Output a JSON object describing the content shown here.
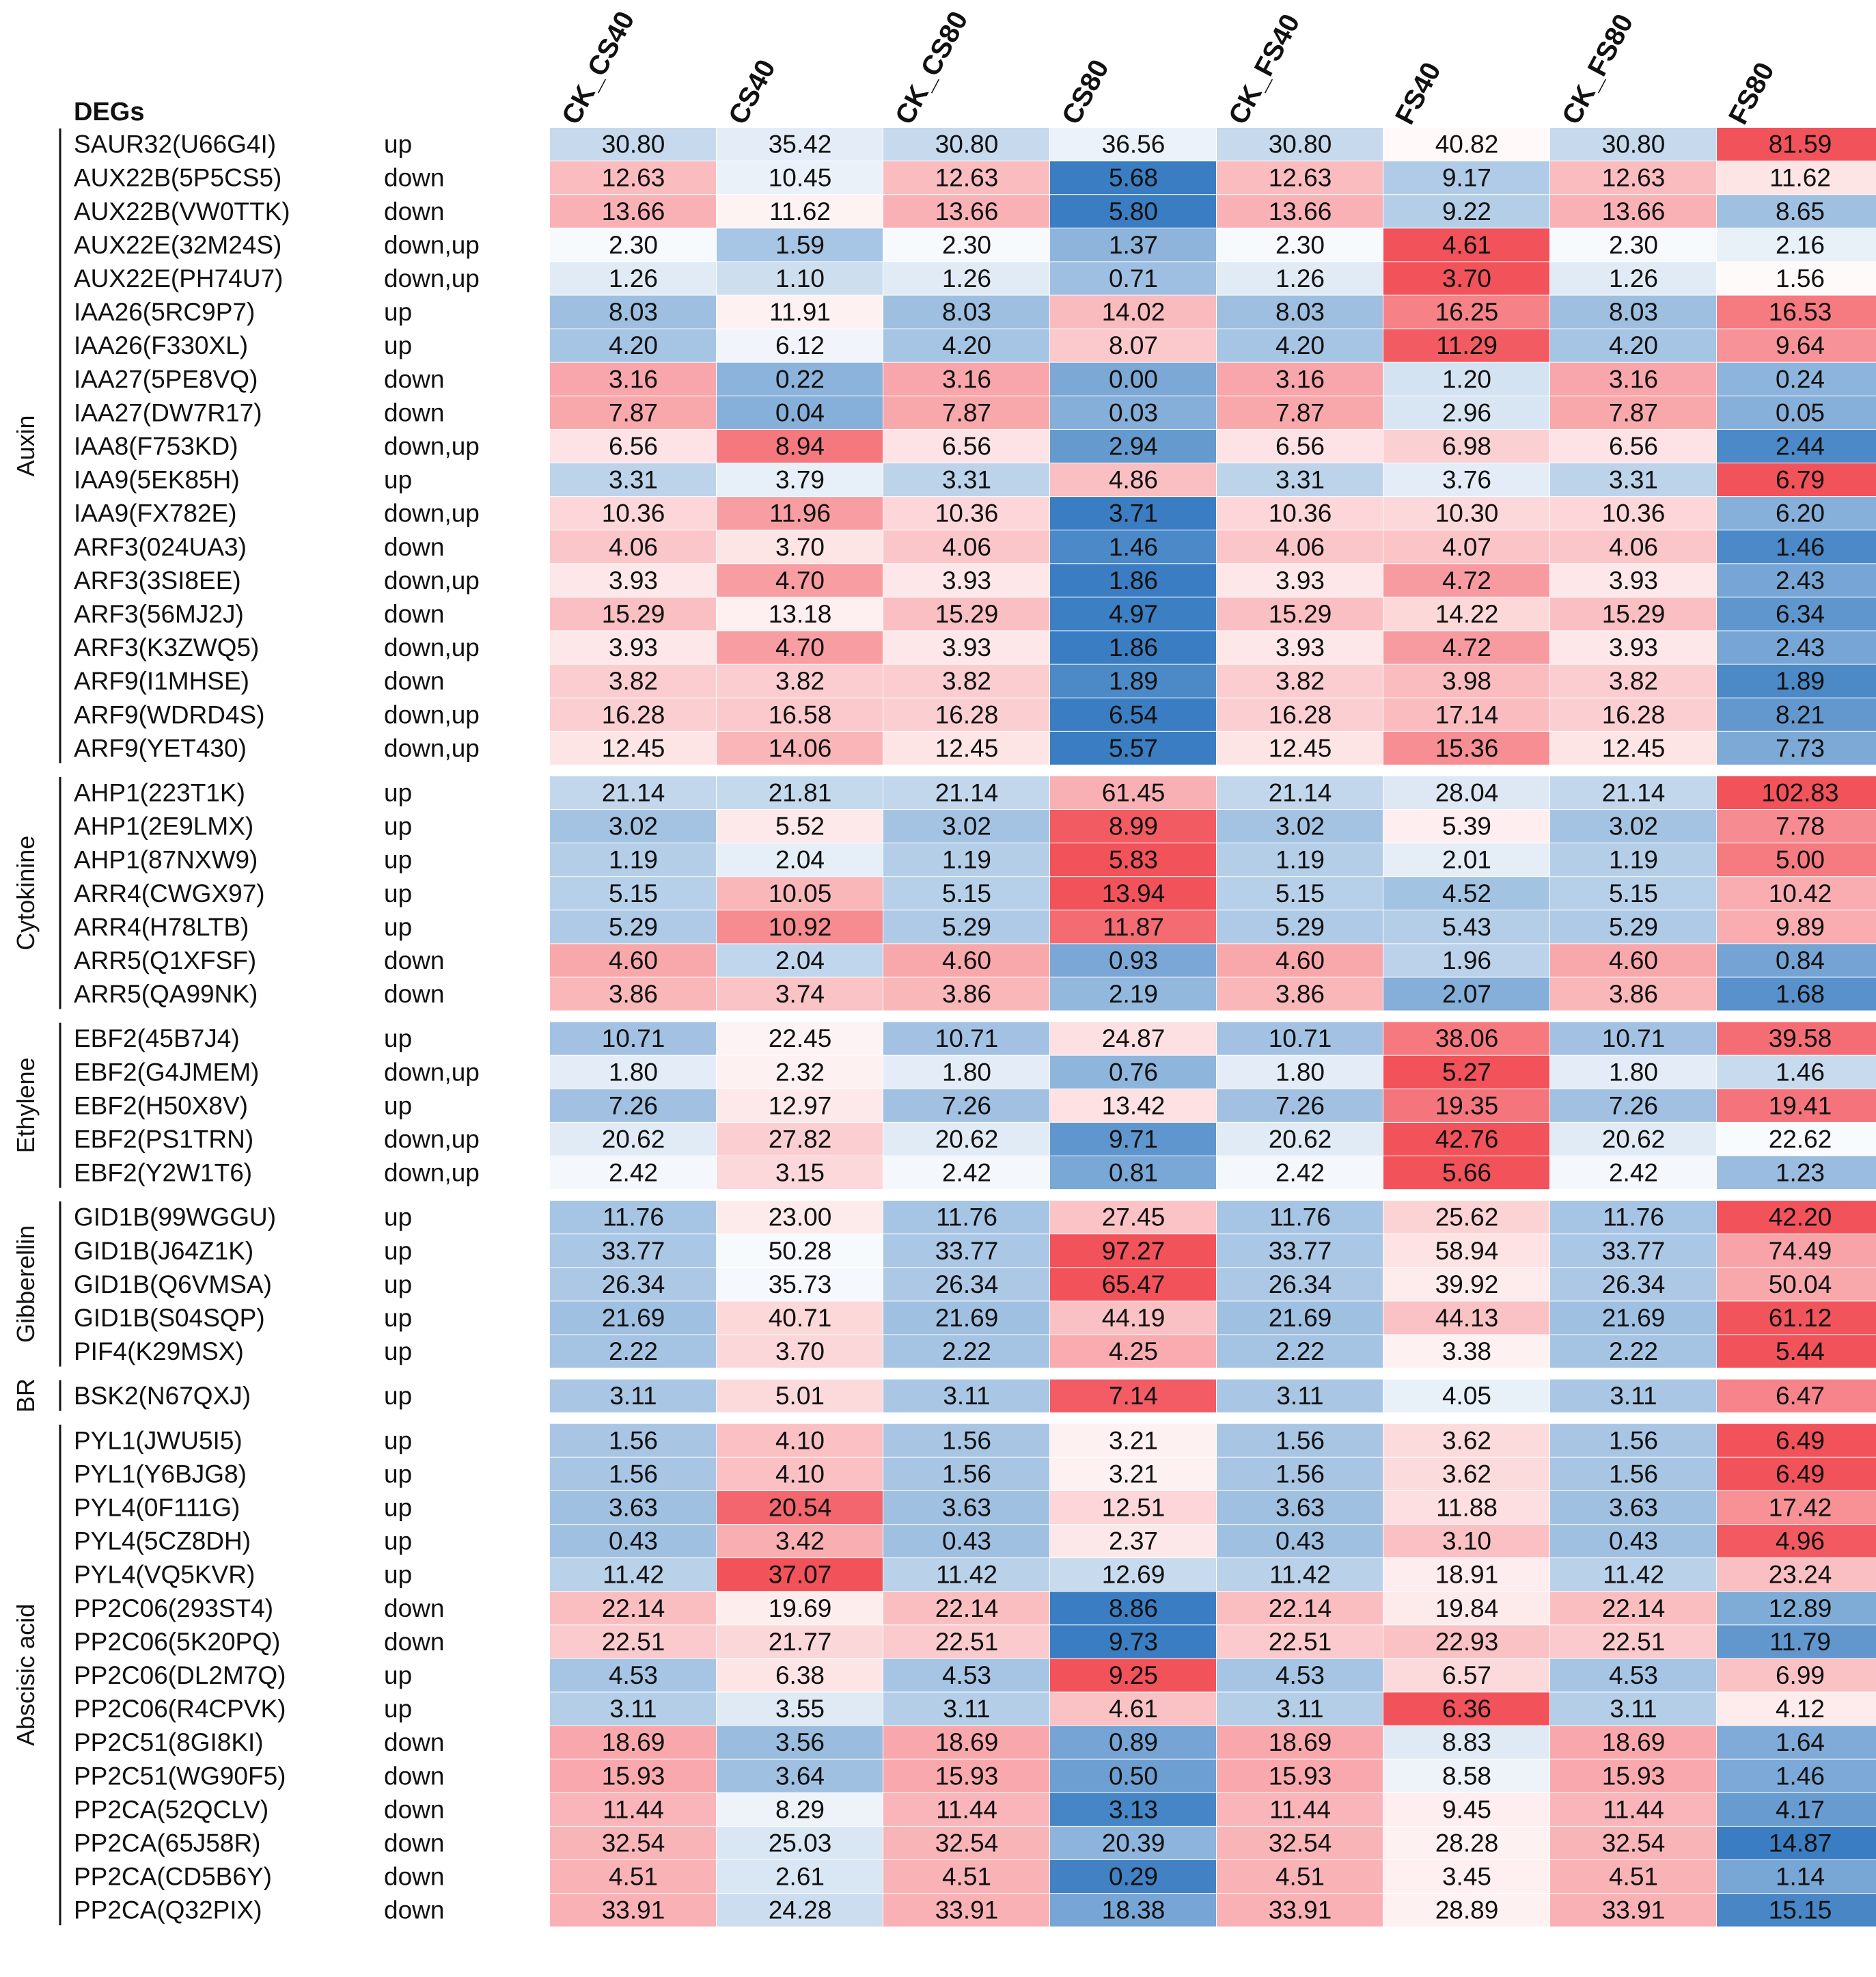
{
  "chart_data": {
    "type": "heatmap",
    "title": "",
    "header_label": "DEGs",
    "columns": [
      "CK_CS40",
      "CS40",
      "CK_CS80",
      "CS80",
      "CK_FS40",
      "FS40",
      "CK_FS80",
      "FS80"
    ],
    "color_scale": {
      "low": "#3a7dc2",
      "mid": "#ffffff",
      "high": "#f2525a"
    },
    "groups": [
      {
        "name": "Auxin",
        "rows": [
          {
            "gene": "SAUR32(U66G4I)",
            "reg": "up",
            "values": [
              30.8,
              35.42,
              30.8,
              36.56,
              30.8,
              40.82,
              30.8,
              81.59
            ]
          },
          {
            "gene": "AUX22B(5P5CS5)",
            "reg": "down",
            "values": [
              12.63,
              10.45,
              12.63,
              5.68,
              12.63,
              9.17,
              12.63,
              11.62
            ]
          },
          {
            "gene": "AUX22B(VW0TTK)",
            "reg": "down",
            "values": [
              13.66,
              11.62,
              13.66,
              5.8,
              13.66,
              9.22,
              13.66,
              8.65
            ]
          },
          {
            "gene": "AUX22E(32M24S)",
            "reg": "down,up",
            "values": [
              2.3,
              1.59,
              2.3,
              1.37,
              2.3,
              4.61,
              2.3,
              2.16
            ]
          },
          {
            "gene": "AUX22E(PH74U7)",
            "reg": "down,up",
            "values": [
              1.26,
              1.1,
              1.26,
              0.71,
              1.26,
              3.7,
              1.26,
              1.56
            ]
          },
          {
            "gene": "IAA26(5RC9P7)",
            "reg": "up",
            "values": [
              8.03,
              11.91,
              8.03,
              14.02,
              8.03,
              16.25,
              8.03,
              16.53
            ]
          },
          {
            "gene": "IAA26(F330XL)",
            "reg": "up",
            "values": [
              4.2,
              6.12,
              4.2,
              8.07,
              4.2,
              11.29,
              4.2,
              9.64
            ]
          },
          {
            "gene": "IAA27(5PE8VQ)",
            "reg": "down",
            "values": [
              3.16,
              0.22,
              3.16,
              0.0,
              3.16,
              1.2,
              3.16,
              0.24
            ]
          },
          {
            "gene": "IAA27(DW7R17)",
            "reg": "down",
            "values": [
              7.87,
              0.04,
              7.87,
              0.03,
              7.87,
              2.96,
              7.87,
              0.05
            ]
          },
          {
            "gene": "IAA8(F753KD)",
            "reg": "down,up",
            "values": [
              6.56,
              8.94,
              6.56,
              2.94,
              6.56,
              6.98,
              6.56,
              2.44
            ]
          },
          {
            "gene": "IAA9(5EK85H)",
            "reg": "up",
            "values": [
              3.31,
              3.79,
              3.31,
              4.86,
              3.31,
              3.76,
              3.31,
              6.79
            ]
          },
          {
            "gene": "IAA9(FX782E)",
            "reg": "down,up",
            "values": [
              10.36,
              11.96,
              10.36,
              3.71,
              10.36,
              10.3,
              10.36,
              6.2
            ]
          },
          {
            "gene": "ARF3(024UA3)",
            "reg": "down",
            "values": [
              4.06,
              3.7,
              4.06,
              1.46,
              4.06,
              4.07,
              4.06,
              1.46
            ]
          },
          {
            "gene": "ARF3(3SI8EE)",
            "reg": "down,up",
            "values": [
              3.93,
              4.7,
              3.93,
              1.86,
              3.93,
              4.72,
              3.93,
              2.43
            ]
          },
          {
            "gene": "ARF3(56MJ2J)",
            "reg": "down",
            "values": [
              15.29,
              13.18,
              15.29,
              4.97,
              15.29,
              14.22,
              15.29,
              6.34
            ]
          },
          {
            "gene": "ARF3(K3ZWQ5)",
            "reg": "down,up",
            "values": [
              3.93,
              4.7,
              3.93,
              1.86,
              3.93,
              4.72,
              3.93,
              2.43
            ]
          },
          {
            "gene": "ARF9(I1MHSE)",
            "reg": "down",
            "values": [
              3.82,
              3.82,
              3.82,
              1.89,
              3.82,
              3.98,
              3.82,
              1.89
            ]
          },
          {
            "gene": "ARF9(WDRD4S)",
            "reg": "down,up",
            "values": [
              16.28,
              16.58,
              16.28,
              6.54,
              16.28,
              17.14,
              16.28,
              8.21
            ]
          },
          {
            "gene": "ARF9(YET430)",
            "reg": "down,up",
            "values": [
              12.45,
              14.06,
              12.45,
              5.57,
              12.45,
              15.36,
              12.45,
              7.73
            ]
          }
        ]
      },
      {
        "name": "Cytokinine",
        "rows": [
          {
            "gene": "AHP1(223T1K)",
            "reg": "up",
            "values": [
              21.14,
              21.81,
              21.14,
              61.45,
              21.14,
              28.04,
              21.14,
              102.83
            ]
          },
          {
            "gene": "AHP1(2E9LMX)",
            "reg": "up",
            "values": [
              3.02,
              5.52,
              3.02,
              8.99,
              3.02,
              5.39,
              3.02,
              7.78
            ]
          },
          {
            "gene": "AHP1(87NXW9)",
            "reg": "up",
            "values": [
              1.19,
              2.04,
              1.19,
              5.83,
              1.19,
              2.01,
              1.19,
              5.0
            ]
          },
          {
            "gene": "ARR4(CWGX97)",
            "reg": "up",
            "values": [
              5.15,
              10.05,
              5.15,
              13.94,
              5.15,
              4.52,
              5.15,
              10.42
            ]
          },
          {
            "gene": "ARR4(H78LTB)",
            "reg": "up",
            "values": [
              5.29,
              10.92,
              5.29,
              11.87,
              5.29,
              5.43,
              5.29,
              9.89
            ]
          },
          {
            "gene": "ARR5(Q1XFSF)",
            "reg": "down",
            "values": [
              4.6,
              2.04,
              4.6,
              0.93,
              4.6,
              1.96,
              4.6,
              0.84
            ]
          },
          {
            "gene": "ARR5(QA99NK)",
            "reg": "down",
            "values": [
              3.86,
              3.74,
              3.86,
              2.19,
              3.86,
              2.07,
              3.86,
              1.68
            ]
          }
        ]
      },
      {
        "name": "Ethylene",
        "rows": [
          {
            "gene": "EBF2(45B7J4)",
            "reg": "up",
            "values": [
              10.71,
              22.45,
              10.71,
              24.87,
              10.71,
              38.06,
              10.71,
              39.58
            ]
          },
          {
            "gene": "EBF2(G4JMEM)",
            "reg": "down,up",
            "values": [
              1.8,
              2.32,
              1.8,
              0.76,
              1.8,
              5.27,
              1.8,
              1.46
            ]
          },
          {
            "gene": "EBF2(H50X8V)",
            "reg": "up",
            "values": [
              7.26,
              12.97,
              7.26,
              13.42,
              7.26,
              19.35,
              7.26,
              19.41
            ]
          },
          {
            "gene": "EBF2(PS1TRN)",
            "reg": "down,up",
            "values": [
              20.62,
              27.82,
              20.62,
              9.71,
              20.62,
              42.76,
              20.62,
              22.62
            ]
          },
          {
            "gene": "EBF2(Y2W1T6)",
            "reg": "down,up",
            "values": [
              2.42,
              3.15,
              2.42,
              0.81,
              2.42,
              5.66,
              2.42,
              1.23
            ]
          }
        ]
      },
      {
        "name": "Gibberellin",
        "rows": [
          {
            "gene": "GID1B(99WGGU)",
            "reg": "up",
            "values": [
              11.76,
              23.0,
              11.76,
              27.45,
              11.76,
              25.62,
              11.76,
              42.2
            ]
          },
          {
            "gene": "GID1B(J64Z1K)",
            "reg": "up",
            "values": [
              33.77,
              50.28,
              33.77,
              97.27,
              33.77,
              58.94,
              33.77,
              74.49
            ]
          },
          {
            "gene": "GID1B(Q6VMSA)",
            "reg": "up",
            "values": [
              26.34,
              35.73,
              26.34,
              65.47,
              26.34,
              39.92,
              26.34,
              50.04
            ]
          },
          {
            "gene": "GID1B(S04SQP)",
            "reg": "up",
            "values": [
              21.69,
              40.71,
              21.69,
              44.19,
              21.69,
              44.13,
              21.69,
              61.12
            ]
          },
          {
            "gene": "PIF4(K29MSX)",
            "reg": "up",
            "values": [
              2.22,
              3.7,
              2.22,
              4.25,
              2.22,
              3.38,
              2.22,
              5.44
            ]
          }
        ]
      },
      {
        "name": "BR",
        "rows": [
          {
            "gene": "BSK2(N67QXJ)",
            "reg": "up",
            "values": [
              3.11,
              5.01,
              3.11,
              7.14,
              3.11,
              4.05,
              3.11,
              6.47
            ]
          }
        ]
      },
      {
        "name": "Abscisic acid",
        "rows": [
          {
            "gene": "PYL1(JWU5I5)",
            "reg": "up",
            "values": [
              1.56,
              4.1,
              1.56,
              3.21,
              1.56,
              3.62,
              1.56,
              6.49
            ]
          },
          {
            "gene": "PYL1(Y6BJG8)",
            "reg": "up",
            "values": [
              1.56,
              4.1,
              1.56,
              3.21,
              1.56,
              3.62,
              1.56,
              6.49
            ]
          },
          {
            "gene": "PYL4(0F111G)",
            "reg": "up",
            "values": [
              3.63,
              20.54,
              3.63,
              12.51,
              3.63,
              11.88,
              3.63,
              17.42
            ]
          },
          {
            "gene": "PYL4(5CZ8DH)",
            "reg": "up",
            "values": [
              0.43,
              3.42,
              0.43,
              2.37,
              0.43,
              3.1,
              0.43,
              4.96
            ]
          },
          {
            "gene": "PYL4(VQ5KVR)",
            "reg": "up",
            "values": [
              11.42,
              37.07,
              11.42,
              12.69,
              11.42,
              18.91,
              11.42,
              23.24
            ]
          },
          {
            "gene": "PP2C06(293ST4)",
            "reg": "down",
            "values": [
              22.14,
              19.69,
              22.14,
              8.86,
              22.14,
              19.84,
              22.14,
              12.89
            ]
          },
          {
            "gene": "PP2C06(5K20PQ)",
            "reg": "down",
            "values": [
              22.51,
              21.77,
              22.51,
              9.73,
              22.51,
              22.93,
              22.51,
              11.79
            ]
          },
          {
            "gene": "PP2C06(DL2M7Q)",
            "reg": "up",
            "values": [
              4.53,
              6.38,
              4.53,
              9.25,
              4.53,
              6.57,
              4.53,
              6.99
            ]
          },
          {
            "gene": "PP2C06(R4CPVK)",
            "reg": "up",
            "values": [
              3.11,
              3.55,
              3.11,
              4.61,
              3.11,
              6.36,
              3.11,
              4.12
            ]
          },
          {
            "gene": "PP2C51(8GI8KI)",
            "reg": "down",
            "values": [
              18.69,
              3.56,
              18.69,
              0.89,
              18.69,
              8.83,
              18.69,
              1.64
            ]
          },
          {
            "gene": "PP2C51(WG90F5)",
            "reg": "down",
            "values": [
              15.93,
              3.64,
              15.93,
              0.5,
              15.93,
              8.58,
              15.93,
              1.46
            ]
          },
          {
            "gene": "PP2CA(52QCLV)",
            "reg": "down",
            "values": [
              11.44,
              8.29,
              11.44,
              3.13,
              11.44,
              9.45,
              11.44,
              4.17
            ]
          },
          {
            "gene": "PP2CA(65J58R)",
            "reg": "down",
            "values": [
              32.54,
              25.03,
              32.54,
              20.39,
              32.54,
              28.28,
              32.54,
              14.87
            ]
          },
          {
            "gene": "PP2CA(CD5B6Y)",
            "reg": "down",
            "values": [
              4.51,
              2.61,
              4.51,
              0.29,
              4.51,
              3.45,
              4.51,
              1.14
            ]
          },
          {
            "gene": "PP2CA(Q32PIX)",
            "reg": "down",
            "values": [
              33.91,
              24.28,
              33.91,
              18.38,
              33.91,
              28.89,
              33.91,
              15.15
            ]
          }
        ]
      }
    ]
  }
}
